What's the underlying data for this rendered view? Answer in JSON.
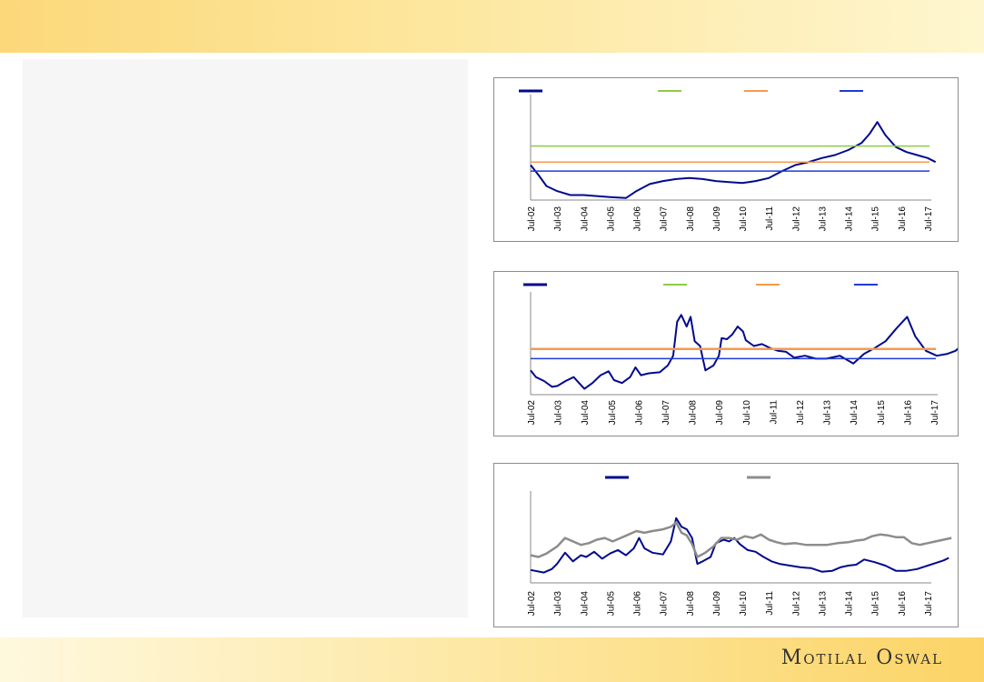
{
  "brand": {
    "name": "Motilal Oswal"
  },
  "colors": {
    "navy": "#000a8c",
    "green": "#8ccc44",
    "orange": "#f59a4e",
    "blue": "#1f3ad6",
    "grey": "#8c8c8c"
  },
  "chart_data": [
    {
      "type": "line",
      "categories": [
        "Jul-02",
        "Jul-03",
        "Jul-04",
        "Jul-05",
        "Jul-06",
        "Jul-07",
        "Jul-08",
        "Jul-09",
        "Jul-10",
        "Jul-11",
        "Jul-12",
        "Jul-13",
        "Jul-14",
        "Jul-15",
        "Jul-16",
        "Jul-17"
      ],
      "ylim": [
        0,
        100
      ],
      "series": [
        {
          "color": "#000a8c",
          "width": 2,
          "points": [
            [
              0,
              35
            ],
            [
              0.3,
              25
            ],
            [
              0.6,
              14
            ],
            [
              1,
              9
            ],
            [
              1.5,
              5
            ],
            [
              2,
              5
            ],
            [
              2.5,
              4
            ],
            [
              3,
              3
            ],
            [
              3.6,
              2
            ],
            [
              4,
              9
            ],
            [
              4.5,
              16
            ],
            [
              5,
              19
            ],
            [
              5.5,
              21
            ],
            [
              6,
              22
            ],
            [
              6.5,
              21
            ],
            [
              7,
              19
            ],
            [
              7.5,
              18
            ],
            [
              8,
              17
            ],
            [
              8.5,
              19
            ],
            [
              9,
              22
            ],
            [
              9.5,
              29
            ],
            [
              10,
              35
            ],
            [
              10.5,
              38
            ],
            [
              11,
              42
            ],
            [
              11.5,
              45
            ],
            [
              12,
              50
            ],
            [
              12.5,
              57
            ],
            [
              12.8,
              66
            ],
            [
              13.1,
              78
            ],
            [
              13.4,
              65
            ],
            [
              13.8,
              53
            ],
            [
              14.2,
              48
            ],
            [
              14.6,
              45
            ],
            [
              15,
              42
            ],
            [
              15.3,
              38
            ]
          ]
        },
        {
          "color": "#8ccc44",
          "width": 1.5,
          "value": 54
        },
        {
          "color": "#f59a4e",
          "width": 1.5,
          "value": 38
        },
        {
          "color": "#1f3ad6",
          "width": 1.5,
          "value": 29
        }
      ]
    },
    {
      "type": "line",
      "categories": [
        "Jul-02",
        "Jul-03",
        "Jul-04",
        "Jul-05",
        "Jul-06",
        "Jul-07",
        "Jul-08",
        "Jul-09",
        "Jul-10",
        "Jul-11",
        "Jul-12",
        "Jul-13",
        "Jul-14",
        "Jul-15",
        "Jul-16",
        "Jul-17"
      ],
      "ylim": [
        0,
        100
      ],
      "series": [
        {
          "color": "#000a8c",
          "width": 2,
          "points": [
            [
              0,
              25
            ],
            [
              0.2,
              18
            ],
            [
              0.5,
              14
            ],
            [
              0.8,
              8
            ],
            [
              1,
              9
            ],
            [
              1.3,
              14
            ],
            [
              1.6,
              18
            ],
            [
              1.8,
              12
            ],
            [
              2,
              6
            ],
            [
              2.3,
              12
            ],
            [
              2.6,
              20
            ],
            [
              2.9,
              24
            ],
            [
              3.1,
              15
            ],
            [
              3.4,
              12
            ],
            [
              3.7,
              18
            ],
            [
              3.9,
              28
            ],
            [
              4.1,
              20
            ],
            [
              4.4,
              22
            ],
            [
              4.8,
              23
            ],
            [
              5.1,
              30
            ],
            [
              5.3,
              40
            ],
            [
              5.45,
              75
            ],
            [
              5.6,
              82
            ],
            [
              5.8,
              70
            ],
            [
              5.95,
              80
            ],
            [
              6.1,
              55
            ],
            [
              6.3,
              50
            ],
            [
              6.5,
              25
            ],
            [
              6.8,
              30
            ],
            [
              7,
              40
            ],
            [
              7.1,
              58
            ],
            [
              7.3,
              57
            ],
            [
              7.5,
              62
            ],
            [
              7.7,
              70
            ],
            [
              7.9,
              65
            ],
            [
              8,
              56
            ],
            [
              8.3,
              50
            ],
            [
              8.6,
              52
            ],
            [
              8.9,
              48
            ],
            [
              9.2,
              45
            ],
            [
              9.5,
              44
            ],
            [
              9.8,
              38
            ],
            [
              10.2,
              40
            ],
            [
              10.6,
              37
            ],
            [
              11,
              37
            ],
            [
              11.5,
              40
            ],
            [
              12,
              32
            ],
            [
              12.4,
              42
            ],
            [
              12.8,
              48
            ],
            [
              13.2,
              55
            ],
            [
              13.6,
              68
            ],
            [
              14,
              80
            ],
            [
              14.3,
              60
            ],
            [
              14.7,
              45
            ],
            [
              15.1,
              40
            ],
            [
              15.5,
              42
            ],
            [
              15.8,
              45
            ],
            [
              16,
              50
            ]
          ]
        },
        {
          "color": "#8ccc44",
          "width": 1.5,
          "value": 47
        },
        {
          "color": "#f59a4e",
          "width": 2.5,
          "value": 47
        },
        {
          "color": "#1f3ad6",
          "width": 1.5,
          "value": 37
        }
      ]
    },
    {
      "type": "line",
      "categories": [
        "Jul-02",
        "Jul-03",
        "Jul-04",
        "Jul-05",
        "Jul-06",
        "Jul-07",
        "Jul-08",
        "Jul-09",
        "Jul-10",
        "Jul-11",
        "Jul-12",
        "Jul-13",
        "Jul-14",
        "Jul-15",
        "Jul-16",
        "Jul-17"
      ],
      "ylim": [
        0,
        100
      ],
      "series": [
        {
          "color": "#000a8c",
          "width": 2,
          "points": [
            [
              0,
              15
            ],
            [
              0.5,
              12
            ],
            [
              0.8,
              16
            ],
            [
              1,
              22
            ],
            [
              1.3,
              35
            ],
            [
              1.6,
              25
            ],
            [
              1.9,
              32
            ],
            [
              2.1,
              30
            ],
            [
              2.4,
              36
            ],
            [
              2.7,
              28
            ],
            [
              3,
              34
            ],
            [
              3.3,
              38
            ],
            [
              3.6,
              32
            ],
            [
              3.9,
              40
            ],
            [
              4.1,
              52
            ],
            [
              4.3,
              40
            ],
            [
              4.6,
              35
            ],
            [
              5,
              33
            ],
            [
              5.3,
              48
            ],
            [
              5.5,
              75
            ],
            [
              5.7,
              65
            ],
            [
              5.9,
              62
            ],
            [
              6.1,
              52
            ],
            [
              6.3,
              22
            ],
            [
              6.5,
              25
            ],
            [
              6.8,
              30
            ],
            [
              7,
              46
            ],
            [
              7.3,
              50
            ],
            [
              7.5,
              48
            ],
            [
              7.7,
              52
            ],
            [
              7.9,
              45
            ],
            [
              8.2,
              38
            ],
            [
              8.5,
              36
            ],
            [
              8.8,
              30
            ],
            [
              9.1,
              25
            ],
            [
              9.4,
              22
            ],
            [
              9.8,
              20
            ],
            [
              10.2,
              18
            ],
            [
              10.6,
              17
            ],
            [
              11,
              13
            ],
            [
              11.4,
              14
            ],
            [
              11.7,
              18
            ],
            [
              12,
              20
            ],
            [
              12.3,
              21
            ],
            [
              12.6,
              27
            ],
            [
              13,
              24
            ],
            [
              13.4,
              20
            ],
            [
              13.8,
              14
            ],
            [
              14.2,
              14
            ],
            [
              14.6,
              16
            ],
            [
              15,
              20
            ],
            [
              15.3,
              23
            ],
            [
              15.6,
              26
            ],
            [
              15.8,
              29
            ]
          ]
        },
        {
          "color": "#8c8c8c",
          "width": 2.5,
          "points": [
            [
              0,
              32
            ],
            [
              0.3,
              30
            ],
            [
              0.6,
              34
            ],
            [
              1,
              42
            ],
            [
              1.3,
              52
            ],
            [
              1.6,
              48
            ],
            [
              1.9,
              44
            ],
            [
              2.2,
              46
            ],
            [
              2.5,
              50
            ],
            [
              2.8,
              52
            ],
            [
              3.1,
              48
            ],
            [
              3.4,
              52
            ],
            [
              3.7,
              56
            ],
            [
              4,
              60
            ],
            [
              4.3,
              58
            ],
            [
              4.6,
              60
            ],
            [
              5,
              62
            ],
            [
              5.3,
              65
            ],
            [
              5.5,
              70
            ],
            [
              5.7,
              58
            ],
            [
              5.9,
              55
            ],
            [
              6.1,
              45
            ],
            [
              6.3,
              30
            ],
            [
              6.6,
              35
            ],
            [
              6.9,
              42
            ],
            [
              7.2,
              52
            ],
            [
              7.5,
              52
            ],
            [
              7.8,
              50
            ],
            [
              8.1,
              54
            ],
            [
              8.4,
              52
            ],
            [
              8.7,
              56
            ],
            [
              9,
              50
            ],
            [
              9.3,
              47
            ],
            [
              9.6,
              45
            ],
            [
              10,
              46
            ],
            [
              10.4,
              44
            ],
            [
              10.8,
              44
            ],
            [
              11.2,
              44
            ],
            [
              11.6,
              46
            ],
            [
              12,
              47
            ],
            [
              12.3,
              49
            ],
            [
              12.6,
              50
            ],
            [
              12.9,
              54
            ],
            [
              13.2,
              56
            ],
            [
              13.5,
              55
            ],
            [
              13.8,
              53
            ],
            [
              14.1,
              53
            ],
            [
              14.4,
              46
            ],
            [
              14.7,
              44
            ],
            [
              15,
              46
            ],
            [
              15.3,
              48
            ],
            [
              15.6,
              50
            ],
            [
              15.9,
              52
            ]
          ]
        }
      ]
    }
  ]
}
